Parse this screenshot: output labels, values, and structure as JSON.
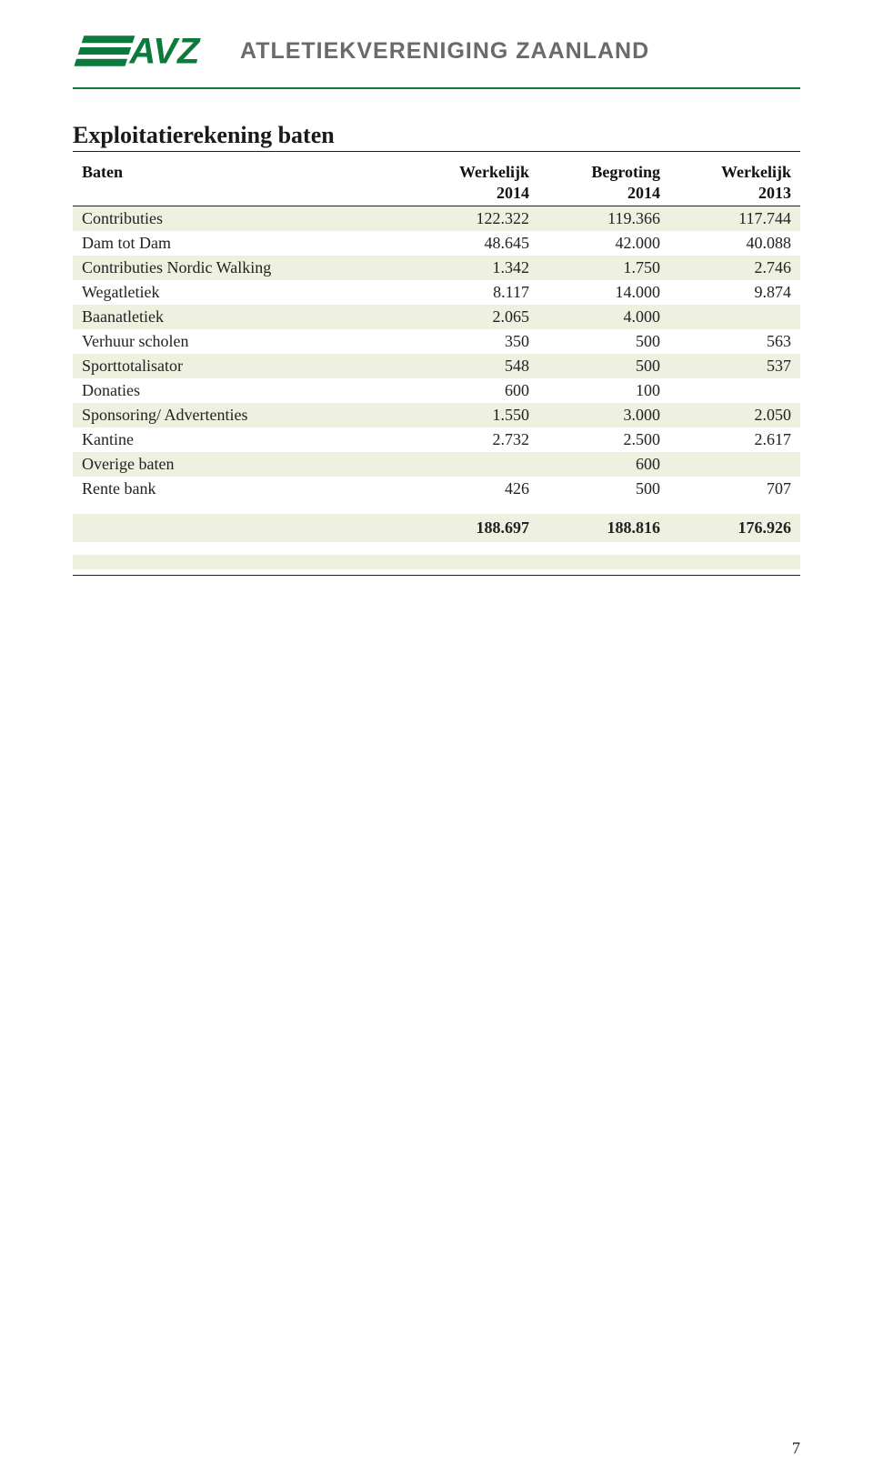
{
  "header": {
    "logo_text": "AVZ",
    "org_title": "ATLETIEKVERENIGING ZAANLAND"
  },
  "section_title": "Exploitatierekening baten",
  "table": {
    "row_stripe_odd": "#eef1e0",
    "row_stripe_even": "#ffffff",
    "label_header": "Baten",
    "col_headers_top": [
      "Werkelijk",
      "Begroting",
      "Werkelijk"
    ],
    "col_headers_bottom": [
      "2014",
      "2014",
      "2013"
    ],
    "rows": [
      {
        "label": "Contributies",
        "v1": "122.322",
        "v2": "119.366",
        "v3": "117.744"
      },
      {
        "label": "Dam tot Dam",
        "v1": "48.645",
        "v2": "42.000",
        "v3": "40.088"
      },
      {
        "label": "Contributies Nordic Walking",
        "v1": "1.342",
        "v2": "1.750",
        "v3": "2.746"
      },
      {
        "label": "Wegatletiek",
        "v1": "8.117",
        "v2": "14.000",
        "v3": "9.874"
      },
      {
        "label": "Baanatletiek",
        "v1": "2.065",
        "v2": "4.000",
        "v3": ""
      },
      {
        "label": "Verhuur scholen",
        "v1": "350",
        "v2": "500",
        "v3": "563"
      },
      {
        "label": "Sporttotalisator",
        "v1": "548",
        "v2": "500",
        "v3": "537"
      },
      {
        "label": "Donaties",
        "v1": "600",
        "v2": "100",
        "v3": ""
      },
      {
        "label": "Sponsoring/ Advertenties",
        "v1": "1.550",
        "v2": "3.000",
        "v3": "2.050"
      },
      {
        "label": "Kantine",
        "v1": "2.732",
        "v2": "2.500",
        "v3": "2.617"
      },
      {
        "label": "Overige baten",
        "v1": "",
        "v2": "600",
        "v3": ""
      },
      {
        "label": "Rente bank",
        "v1": "426",
        "v2": "500",
        "v3": "707"
      }
    ],
    "totals": {
      "v1": "188.697",
      "v2": "188.816",
      "v3": "176.926"
    }
  },
  "page_number": "7",
  "colors": {
    "brand_green": "#0b7a3b",
    "title_gray": "#6a6a6a"
  }
}
